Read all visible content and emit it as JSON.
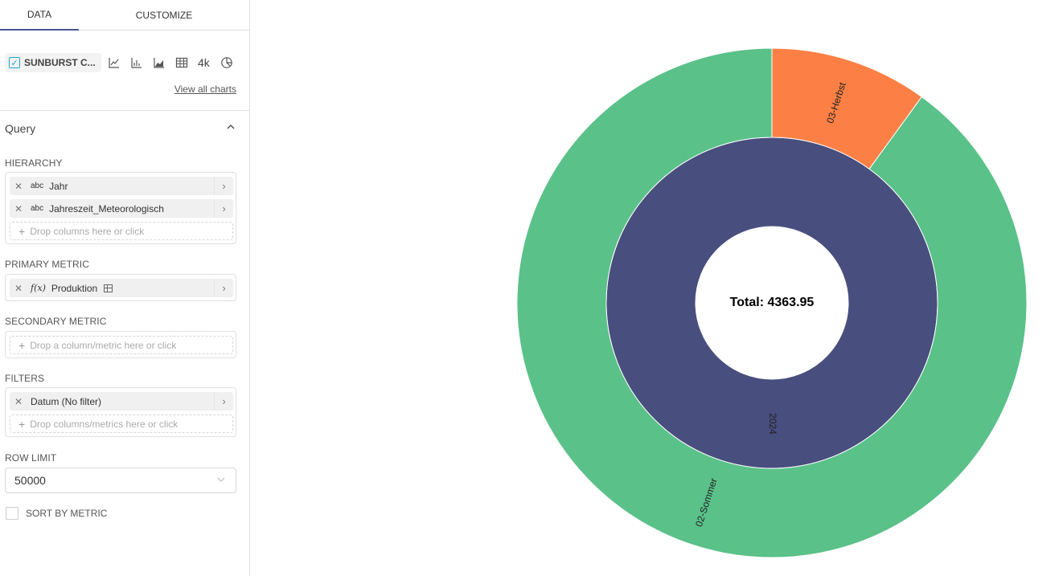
{
  "tabs": {
    "data": "DATA",
    "customize": "CUSTOMIZE"
  },
  "viz": {
    "selected": "SUNBURST C...",
    "quick_icons": [
      "line-chart-icon",
      "bar-chart-icon",
      "area-chart-icon",
      "table-icon",
      "big-number-icon",
      "pie-chart-icon"
    ],
    "big_number_label": "4k",
    "view_all": "View all charts"
  },
  "query": {
    "title": "Query",
    "hierarchy_label": "HIERARCHY",
    "hierarchy": [
      {
        "type": "abc",
        "name": "Jahr"
      },
      {
        "type": "abc",
        "name": "Jahreszeit_Meteorologisch"
      }
    ],
    "hierarchy_drop": "Drop columns here or click",
    "primary_metric_label": "PRIMARY METRIC",
    "primary_metric": {
      "type": "f(x)",
      "name": "Produktion"
    },
    "secondary_metric_label": "SECONDARY METRIC",
    "secondary_metric_drop": "Drop a column/metric here or click",
    "filters_label": "FILTERS",
    "filter": "Datum (No filter)",
    "filters_drop": "Drop columns/metrics here or click",
    "row_limit_label": "ROW LIMIT",
    "row_limit": "50000",
    "sort_by_metric": "SORT BY METRIC"
  },
  "chart_data": {
    "type": "sunburst",
    "center_label": "Total: 4363.95",
    "total": 4363.95,
    "inner_ring": [
      {
        "label": "2024",
        "fraction": 1.0,
        "color": "#484e7d"
      }
    ],
    "outer_ring": [
      {
        "label": "03-Herbst",
        "fraction": 0.1,
        "color": "#fc8045"
      },
      {
        "label": "02-Sommer",
        "fraction": 0.9,
        "color": "#5ac189"
      }
    ]
  }
}
